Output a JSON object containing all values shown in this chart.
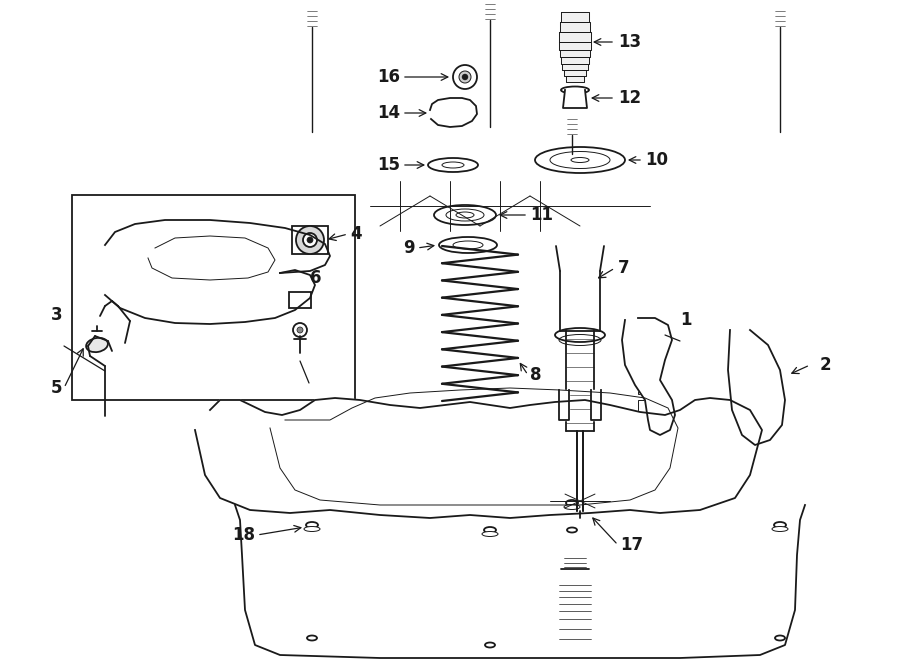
{
  "bg_color": "#ffffff",
  "line_color": "#1a1a1a",
  "fig_width": 9.0,
  "fig_height": 6.61,
  "dpi": 100,
  "lw": 1.3,
  "lw_thin": 0.7,
  "label_fs": 12
}
